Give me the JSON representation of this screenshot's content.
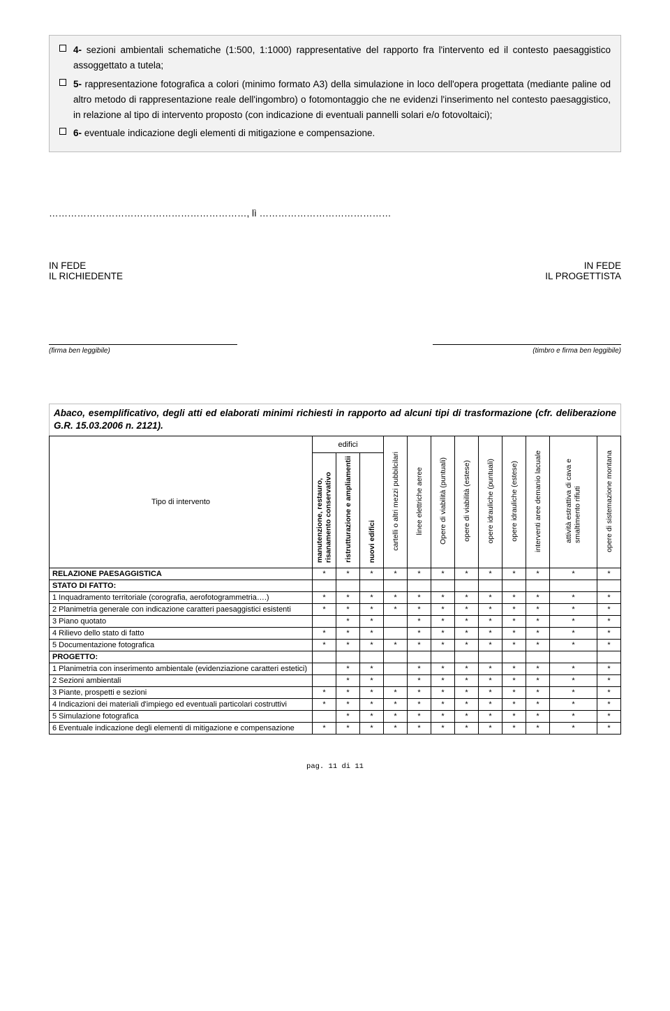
{
  "bullets": {
    "b4_prefix": "4-",
    "b4_text": " sezioni ambientali schematiche (1:500, 1:1000) rappresentative del rapporto fra l'intervento ed il contesto paesaggistico assoggettato a tutela;",
    "b5_prefix": "5-",
    "b5_text": " rappresentazione fotografica a colori (minimo formato A3) della simulazione in loco dell'opera progettata (mediante paline od altro metodo di rappresentazione reale dell'ingombro) o fotomontaggio che ne evidenzi l'inserimento nel contesto paesaggistico, in relazione al tipo di intervento proposto (con indicazione di eventuali pannelli solari e/o fotovoltaici);",
    "b6_prefix": "6-",
    "b6_text": " eventuale indicazione degli elementi di mitigazione e compensazione."
  },
  "date_line": "………………………………………………………, lì ……………………………………",
  "sign": {
    "in_fede": "IN FEDE",
    "richiedente": "IL RICHIEDENTE",
    "progettista": "IL PROGETTISTA",
    "firma": "(firma ben leggibile)",
    "timbro_firma": "(timbro e firma ben leggibile)"
  },
  "abaco_title": "Abaco, esemplificativo, degli atti ed elaborati minimi richiesti in rapporto ad alcuni tipi di trasformazione (cfr. deliberazione G.R. 15.03.2006 n. 2121).",
  "table": {
    "edifici_header": "edifici",
    "tipo_header": "Tipo di intervento",
    "col_heads": [
      "manutenzione, restauro,\nrisanamento conservativo",
      "ristrutturazione e ampliamentii",
      "nuovi edifici",
      "cartelli o altri mezzi pubbilcilari",
      "linee elettriche aeree",
      "Opere di viabilità (puntuali)",
      "opere di viabilità (estese)",
      "opere idrauliche (puntuali)",
      "opere idrauliche (estese)",
      "interventi aree demanio lacuale",
      "attività estrattiva di cava e\nsmaltimento rifiuti",
      "opere di sistemazione montana"
    ],
    "rows": [
      {
        "label": "RELAZIONE PAESAGGISTICA",
        "section": true,
        "stars": [
          "*",
          "*",
          "*",
          "*",
          "*",
          "*",
          "*",
          "*",
          "*",
          "*",
          "*",
          "*"
        ]
      },
      {
        "label": "STATO DI FATTO:",
        "section": true,
        "stars": [
          "",
          "",
          "",
          "",
          "",
          "",
          "",
          "",
          "",
          "",
          "",
          ""
        ]
      },
      {
        "label": "1 Inquadramento territoriale (corografia, aerofotogrammetria….)",
        "section": false,
        "stars": [
          "*",
          "*",
          "*",
          "*",
          "*",
          "*",
          "*",
          "*",
          "*",
          "*",
          "*",
          "*"
        ]
      },
      {
        "label": "2 Planimetria generale con indicazione caratteri paesaggistici esistenti",
        "section": false,
        "stars": [
          "*",
          "*",
          "*",
          "*",
          "*",
          "*",
          "*",
          "*",
          "*",
          "*",
          "*",
          "*"
        ]
      },
      {
        "label": "3 Piano quotato",
        "section": false,
        "stars": [
          "",
          "*",
          "*",
          "",
          "*",
          "*",
          "*",
          "*",
          "*",
          "*",
          "*",
          "*"
        ]
      },
      {
        "label": "4 Rilievo dello stato di fatto",
        "section": false,
        "stars": [
          "*",
          "*",
          "*",
          "",
          "*",
          "*",
          "*",
          "*",
          "*",
          "*",
          "*",
          "*"
        ]
      },
      {
        "label": "5 Documentazione fotografica",
        "section": false,
        "stars": [
          "*",
          "*",
          "*",
          "*",
          "*",
          "*",
          "*",
          "*",
          "*",
          "*",
          "*",
          "*"
        ]
      },
      {
        "label": "PROGETTO:",
        "section": true,
        "stars": [
          "",
          "",
          "",
          "",
          "",
          "",
          "",
          "",
          "",
          "",
          "",
          ""
        ]
      },
      {
        "label": "1 Planimetria con inserimento ambientale (evidenziazione caratteri estetici)",
        "section": false,
        "stars": [
          "",
          "*",
          "*",
          "",
          "*",
          "*",
          "*",
          "*",
          "*",
          "*",
          "*",
          "*"
        ]
      },
      {
        "label": "2 Sezioni ambientali",
        "section": false,
        "stars": [
          "",
          "*",
          "*",
          "",
          "*",
          "*",
          "*",
          "*",
          "*",
          "*",
          "*",
          "*"
        ]
      },
      {
        "label": "3 Piante, prospetti e sezioni",
        "section": false,
        "stars": [
          "*",
          "*",
          "*",
          "*",
          "*",
          "*",
          "*",
          "*",
          "*",
          "*",
          "*",
          "*"
        ]
      },
      {
        "label": "4 Indicazioni dei materiali d'impiego ed eventuali particolari costruttivi",
        "section": false,
        "stars": [
          "*",
          "*",
          "*",
          "*",
          "*",
          "*",
          "*",
          "*",
          "*",
          "*",
          "*",
          "*"
        ]
      },
      {
        "label": "5 Simulazione fotografica",
        "section": false,
        "stars": [
          "",
          "*",
          "*",
          "*",
          "*",
          "*",
          "*",
          "*",
          "*",
          "*",
          "*",
          "*"
        ]
      },
      {
        "label": "6 Eventuale indicazione degli elementi di mitigazione e compensazione",
        "section": false,
        "stars": [
          "*",
          "*",
          "*",
          "*",
          "*",
          "*",
          "*",
          "*",
          "*",
          "*",
          "*",
          "*"
        ]
      }
    ]
  },
  "footer": "pag. 11 di 11"
}
